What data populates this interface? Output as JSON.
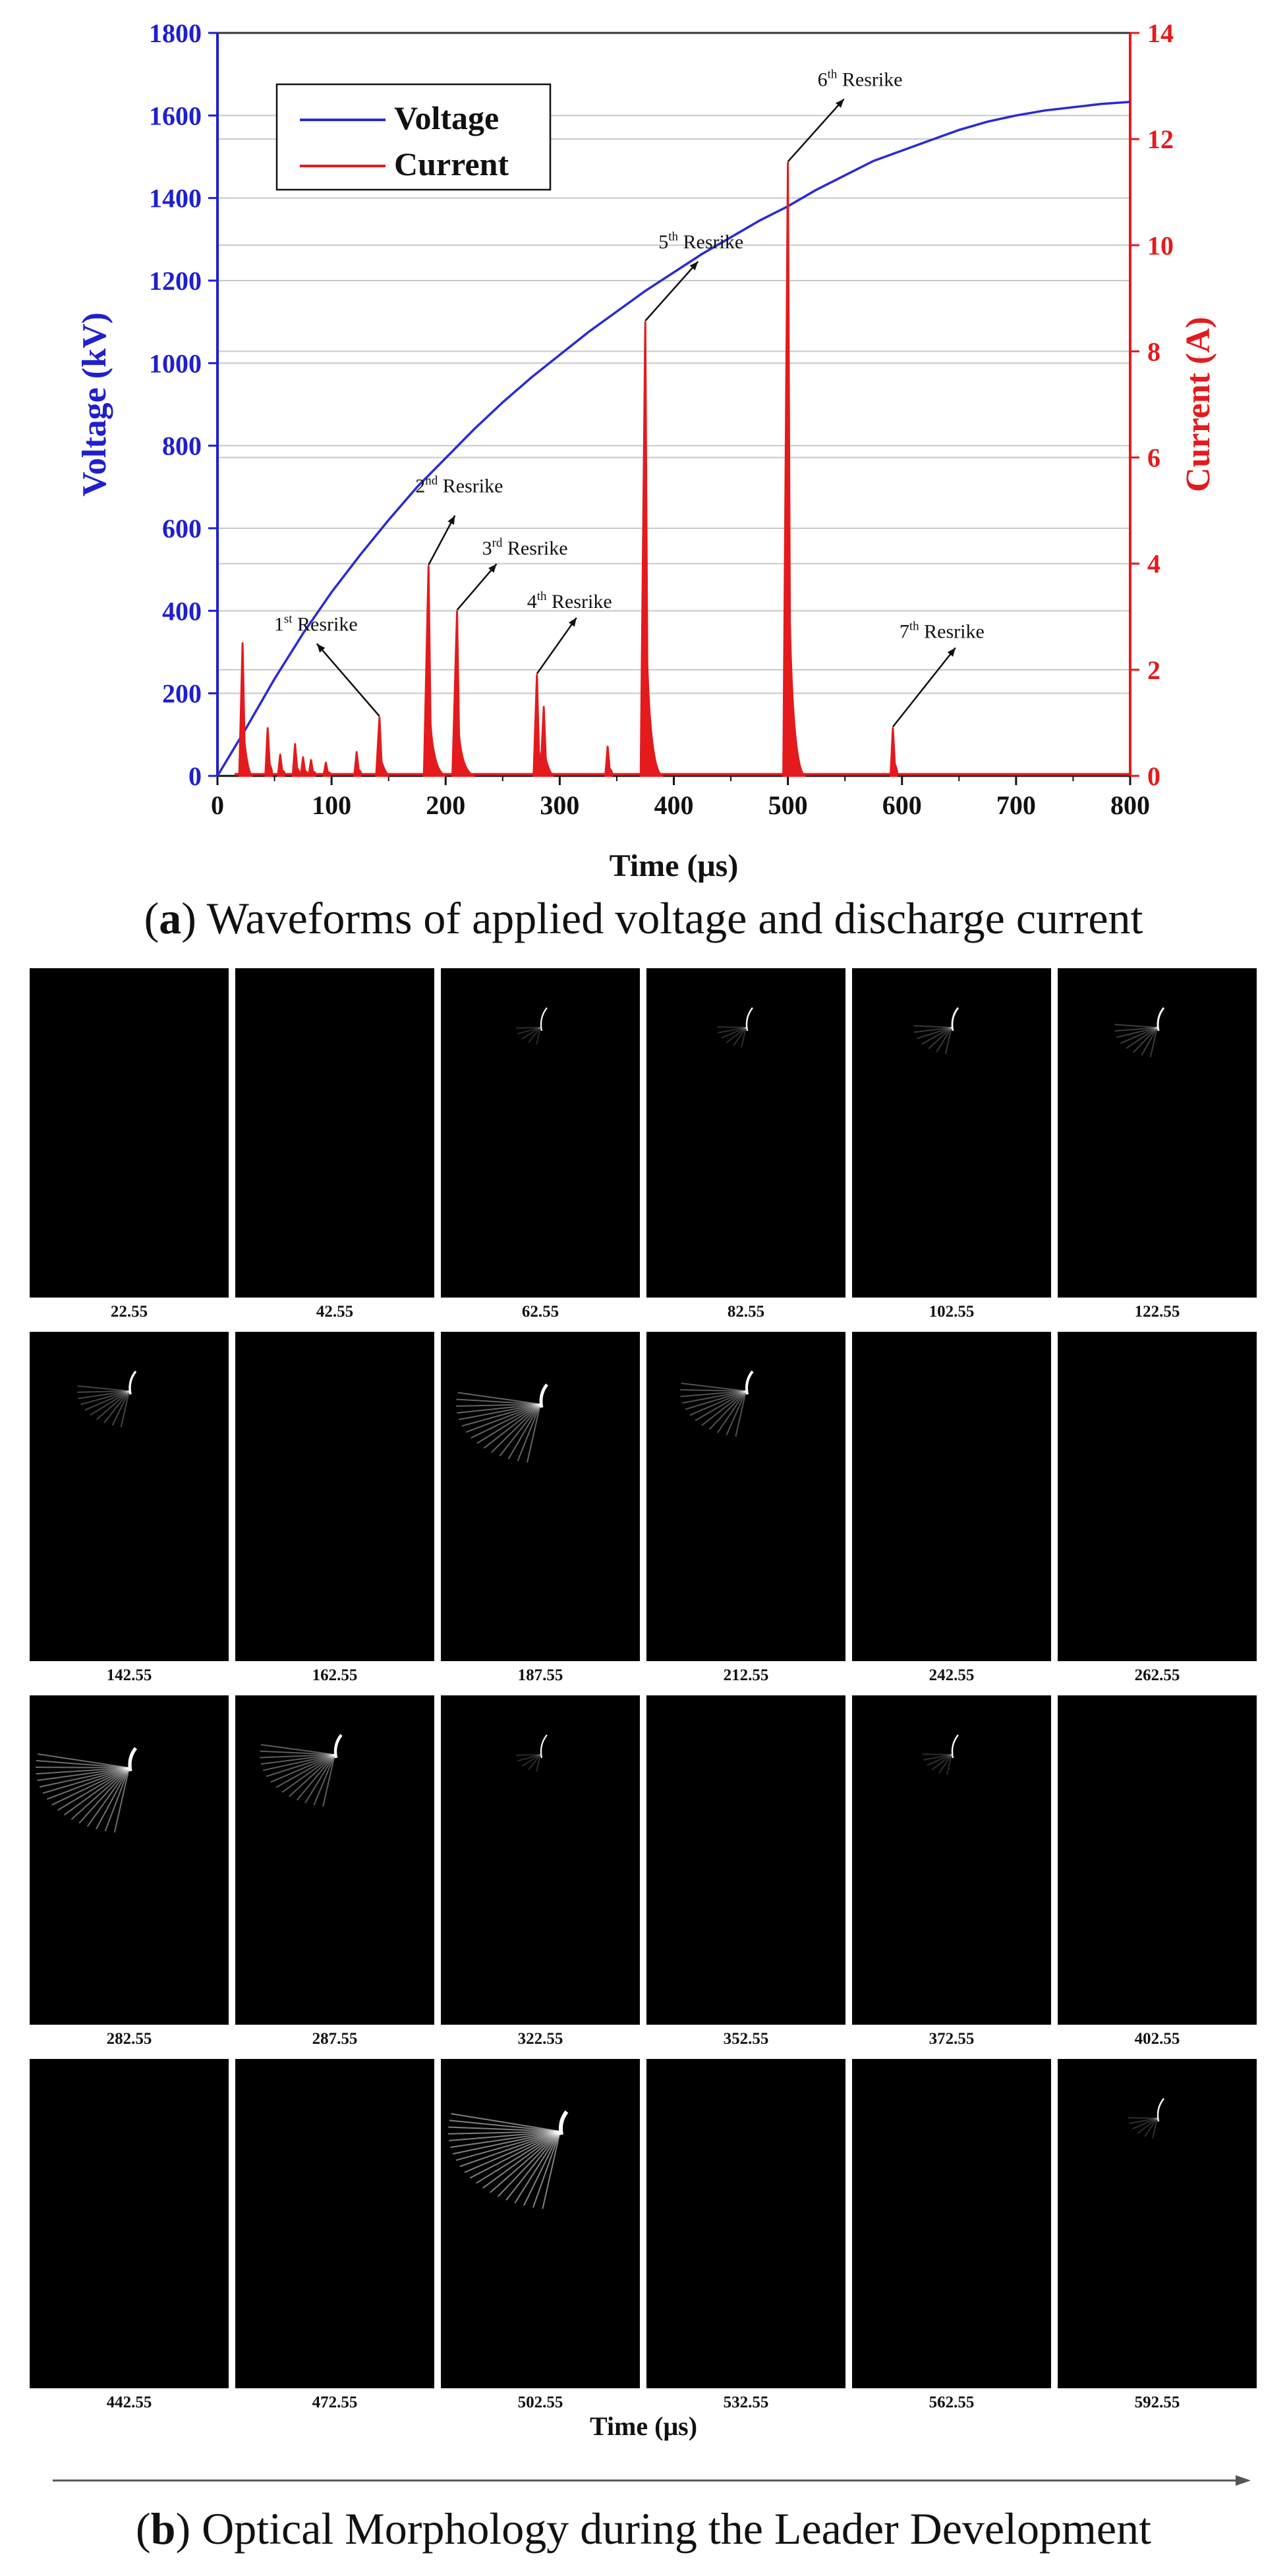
{
  "chart_data": {
    "type": "line",
    "xlabel": "Time (μs)",
    "ylabel_left": "Voltage (kV)",
    "ylabel_right": "Current (A)",
    "xlim": [
      0,
      800
    ],
    "ylim_left": [
      0,
      1800
    ],
    "ylim_right": [
      0,
      14
    ],
    "x_ticks": [
      0,
      100,
      200,
      300,
      400,
      500,
      600,
      700,
      800
    ],
    "y_left_ticks": [
      0,
      200,
      400,
      600,
      800,
      1000,
      1200,
      1400,
      1600,
      1800
    ],
    "y_right_ticks": [
      0,
      2,
      4,
      6,
      8,
      10,
      12,
      14
    ],
    "grid": "horizontal",
    "legend_position": "top-left",
    "colors": {
      "voltage": "#2a2ad4",
      "current": "#e41a1c",
      "axis_left": "#1f1fd0",
      "axis_right": "#e41a1c"
    },
    "series": [
      {
        "name": "Voltage",
        "axis": "left",
        "x": [
          0,
          25,
          50,
          75,
          100,
          125,
          150,
          175,
          200,
          225,
          250,
          275,
          300,
          325,
          350,
          375,
          400,
          425,
          450,
          475,
          500,
          525,
          550,
          575,
          600,
          625,
          650,
          675,
          700,
          725,
          750,
          775,
          800
        ],
        "y": [
          0,
          115,
          235,
          345,
          445,
          535,
          620,
          700,
          770,
          840,
          905,
          965,
          1020,
          1075,
          1125,
          1175,
          1220,
          1265,
          1305,
          1345,
          1380,
          1420,
          1455,
          1490,
          1515,
          1540,
          1565,
          1585,
          1600,
          1612,
          1620,
          1628,
          1633
        ]
      },
      {
        "name": "Current",
        "axis": "right",
        "spikes": [
          {
            "x": 22,
            "y": 2.5
          },
          {
            "x": 44,
            "y": 0.9
          },
          {
            "x": 55,
            "y": 0.4
          },
          {
            "x": 68,
            "y": 0.6
          },
          {
            "x": 75,
            "y": 0.35
          },
          {
            "x": 82,
            "y": 0.3
          },
          {
            "x": 95,
            "y": 0.25
          },
          {
            "x": 122,
            "y": 0.45
          },
          {
            "x": 142,
            "y": 1.1
          },
          {
            "x": 185,
            "y": 3.95
          },
          {
            "x": 210,
            "y": 3.1
          },
          {
            "x": 280,
            "y": 1.9
          },
          {
            "x": 286,
            "y": 1.3
          },
          {
            "x": 342,
            "y": 0.55
          },
          {
            "x": 375,
            "y": 8.55
          },
          {
            "x": 500,
            "y": 11.55
          },
          {
            "x": 592,
            "y": 0.9
          }
        ]
      }
    ],
    "annotations": [
      {
        "base": "1",
        "sup": "st",
        "text": " Resrike",
        "x": 142,
        "y": 1.1
      },
      {
        "base": "2",
        "sup": "nd",
        "text": " Resrike",
        "x": 185,
        "y": 3.95
      },
      {
        "base": "3",
        "sup": "rd",
        "text": " Resrike",
        "x": 210,
        "y": 3.1
      },
      {
        "base": "4",
        "sup": "th",
        "text": " Resrike",
        "x": 280,
        "y": 1.9
      },
      {
        "base": "5",
        "sup": "th",
        "text": " Resrike",
        "x": 375,
        "y": 8.55
      },
      {
        "base": "6",
        "sup": "th",
        "text": " Resrike",
        "x": 500,
        "y": 11.55
      },
      {
        "base": "7",
        "sup": "th",
        "text": " Resrike",
        "x": 592,
        "y": 0.9
      }
    ]
  },
  "captions": {
    "a_letter": "a",
    "a_text": " Waveforms of applied voltage and discharge current",
    "b_letter": "b",
    "b_text": " Optical Morphology during the Leader Development"
  },
  "frames": {
    "xlabel": "Time (μs)",
    "labels": [
      "22.55",
      "42.55",
      "62.55",
      "82.55",
      "102.55",
      "122.55",
      "142.55",
      "162.55",
      "187.55",
      "212.55",
      "242.55",
      "262.55",
      "282.55",
      "287.55",
      "322.55",
      "352.55",
      "372.55",
      "402.55",
      "442.55",
      "472.55",
      "502.55",
      "532.55",
      "562.55",
      "592.55"
    ],
    "brightness": [
      0,
      0,
      0.05,
      0.1,
      0.2,
      0.25,
      0.35,
      0,
      0.7,
      0.5,
      0,
      0,
      0.8,
      0.6,
      0.05,
      0,
      0.1,
      0,
      0,
      0,
      1.0,
      0,
      0,
      0.1
    ]
  }
}
